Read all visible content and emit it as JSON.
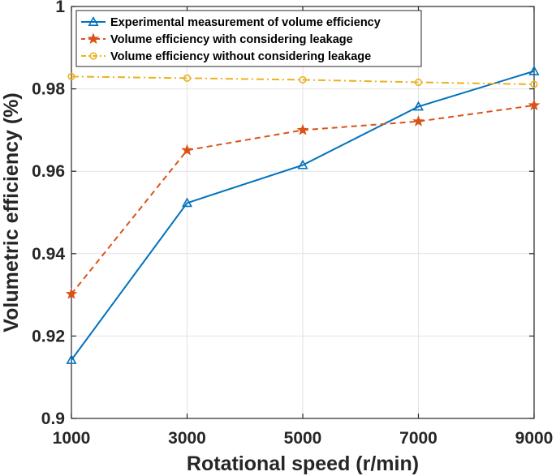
{
  "chart_data": {
    "type": "line",
    "x": [
      1000,
      3000,
      5000,
      7000,
      9000
    ],
    "xlabel": "Rotational speed (r/min)",
    "ylabel": "Volumetric efficiency (%)",
    "xlim": [
      1000,
      9000
    ],
    "ylim": [
      0.9,
      1.0
    ],
    "xticks": [
      "1000",
      "3000",
      "5000",
      "7000",
      "9000"
    ],
    "yticks": [
      "0.9",
      "0.92",
      "0.94",
      "0.96",
      "0.98",
      "1"
    ],
    "grid": true,
    "legend_position": "top-left",
    "series": [
      {
        "name": "Experimental measurement of volume efficiency",
        "values": [
          0.9142,
          0.9523,
          0.9615,
          0.9757,
          0.9843
        ],
        "color": "#0072BD",
        "line_style": "solid",
        "marker": "triangle"
      },
      {
        "name": "Volume efficiency with considering leakage",
        "values": [
          0.9302,
          0.9651,
          0.97,
          0.9721,
          0.976
        ],
        "color": "#D95319",
        "line_style": "dashed",
        "marker": "star"
      },
      {
        "name": "Volume efficiency without considering leakage",
        "values": [
          0.983,
          0.9826,
          0.9822,
          0.9816,
          0.9811
        ],
        "color": "#EDB120",
        "line_style": "dashdot",
        "marker": "circle"
      }
    ]
  }
}
